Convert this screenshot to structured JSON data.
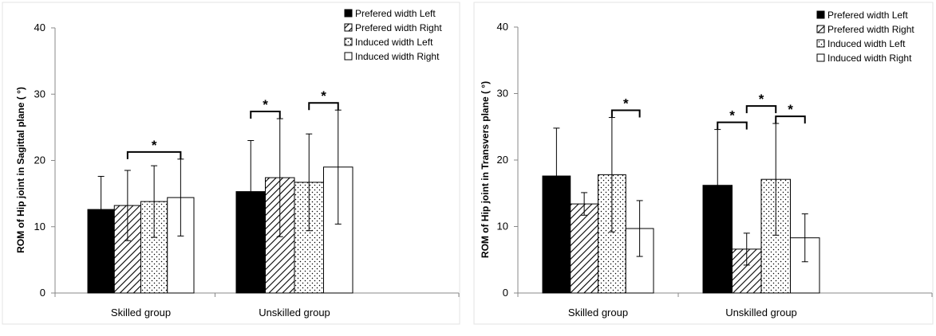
{
  "chart_data": [
    {
      "type": "bar",
      "ylabel": "ROM of Hip joint in Sagittal plane ( °)",
      "xlabel": "",
      "ylim": [
        0,
        40
      ],
      "yticks": [
        "0",
        "10",
        "20",
        "30",
        "40"
      ],
      "categories": [
        "Skilled group",
        "Unskilled group"
      ],
      "legend_position": "top-right",
      "series": [
        {
          "name": "Prefered width Left",
          "pattern": "solid-black",
          "values": [
            12.6,
            15.3
          ],
          "errors": [
            5.0,
            7.7
          ]
        },
        {
          "name": "Prefered width Right",
          "pattern": "diagonal-hatch",
          "values": [
            13.2,
            17.4
          ],
          "errors": [
            5.3,
            8.9
          ]
        },
        {
          "name": "Induced width Left",
          "pattern": "dots",
          "values": [
            13.8,
            16.7
          ],
          "errors": [
            5.4,
            7.3
          ]
        },
        {
          "name": "Induced width Right",
          "pattern": "white",
          "values": [
            14.4,
            19.0
          ],
          "errors": [
            5.8,
            8.6
          ]
        }
      ],
      "significance": [
        {
          "group": 0,
          "from": 1,
          "to": 3,
          "label": "*"
        },
        {
          "group": 1,
          "from": 0,
          "to": 1,
          "label": "*"
        },
        {
          "group": 1,
          "from": 2,
          "to": 3,
          "label": "*"
        }
      ]
    },
    {
      "type": "bar",
      "ylabel": "ROM of Hip joint in Transvers plane ( °)",
      "xlabel": "",
      "ylim": [
        0,
        40
      ],
      "yticks": [
        "0",
        "10",
        "20",
        "30",
        "40"
      ],
      "categories": [
        "Skilled group",
        "Unskilled group"
      ],
      "legend_position": "top-right",
      "series": [
        {
          "name": "Prefered width Left",
          "pattern": "solid-black",
          "values": [
            17.6,
            16.2
          ],
          "errors": [
            7.2,
            8.4
          ]
        },
        {
          "name": "Prefered width Right",
          "pattern": "diagonal-hatch",
          "values": [
            13.4,
            6.6
          ],
          "errors": [
            1.7,
            2.4
          ]
        },
        {
          "name": "Induced width Left",
          "pattern": "dots",
          "values": [
            17.8,
            17.1
          ],
          "errors": [
            8.6,
            8.4
          ]
        },
        {
          "name": "Induced width Right",
          "pattern": "white",
          "values": [
            9.7,
            8.3
          ],
          "errors": [
            4.2,
            3.6
          ]
        }
      ],
      "significance": [
        {
          "group": 0,
          "from": 2,
          "to": 3,
          "label": "*"
        },
        {
          "group": 1,
          "from": 0,
          "to": 1,
          "label": "*"
        },
        {
          "group": 1,
          "from": 1,
          "to": 2,
          "label": "*"
        },
        {
          "group": 1,
          "from": 2,
          "to": 3,
          "label": "*"
        }
      ]
    }
  ]
}
